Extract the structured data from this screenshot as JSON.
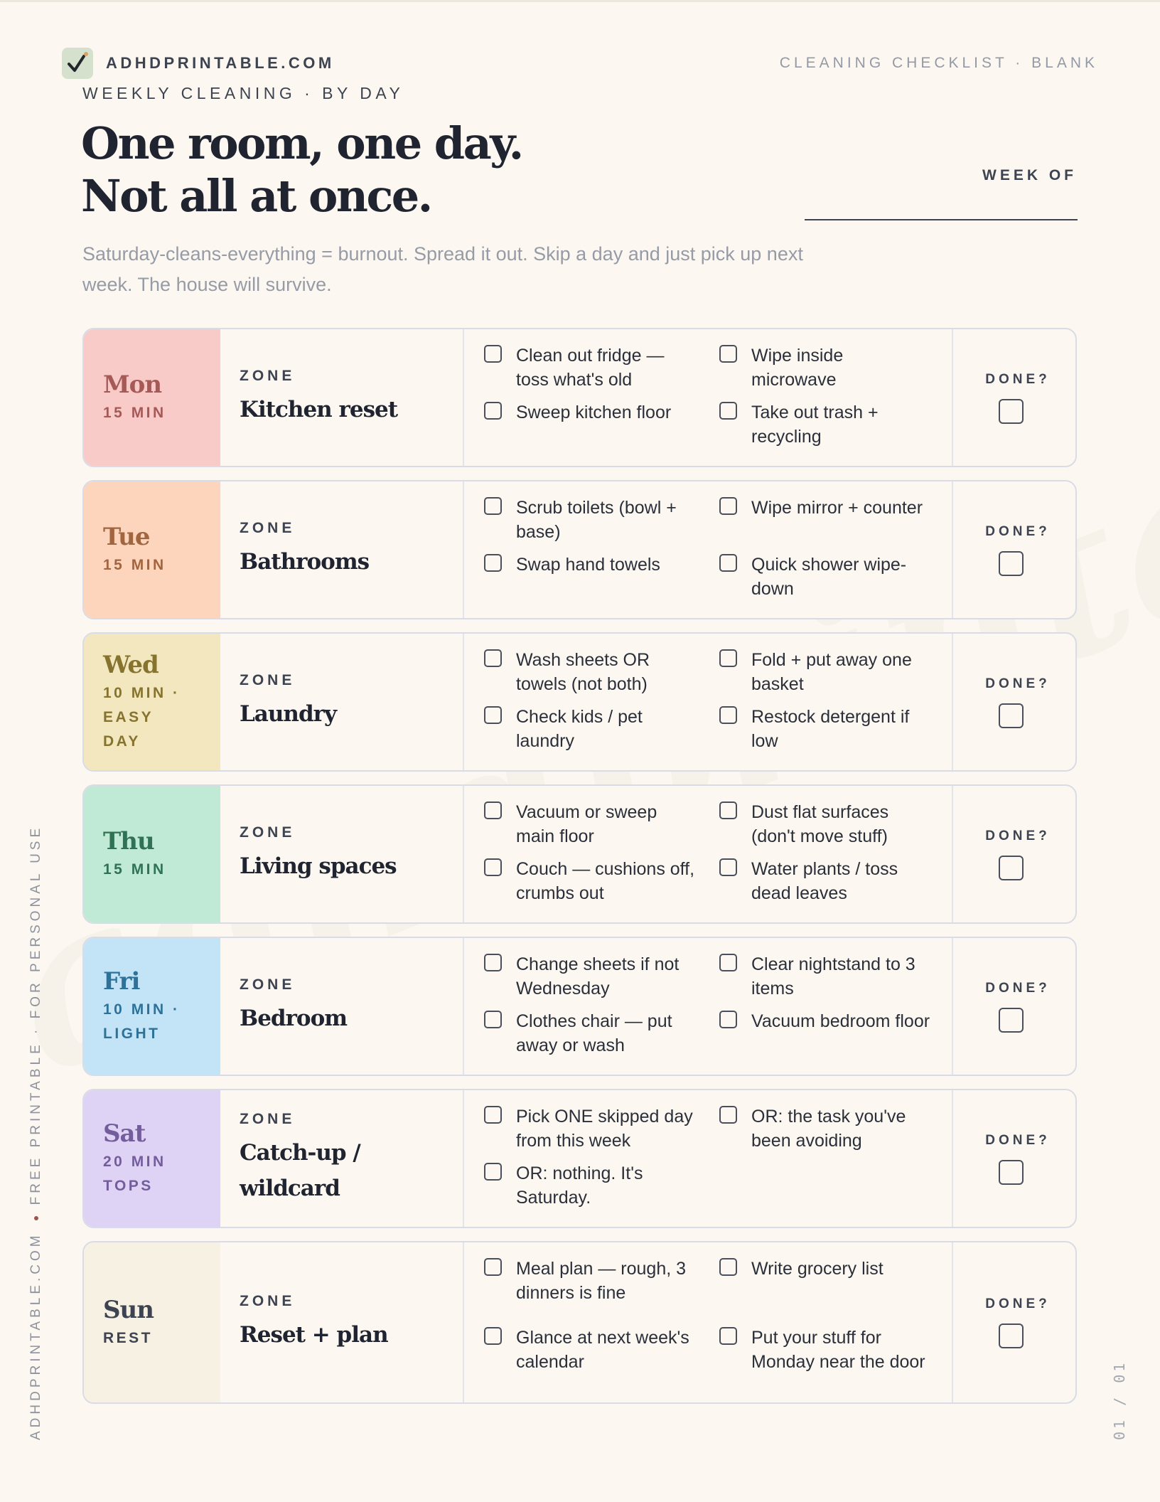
{
  "brand": {
    "name": "ADHDPRINTABLE.COM",
    "logo_icon": "checkmark-icon"
  },
  "header": {
    "kicker": "WEEKLY CLEANING · BY DAY",
    "kicker_right": "CLEANING CHECKLIST · BLANK",
    "headline_line1": "One room, one day.",
    "headline_line2": "Not all at once.",
    "subtitle": "Saturday-cleans-everything = burnout. Spread it out. Skip a day and just pick up next week. The house will survive.",
    "week_of_label": "WEEK OF",
    "week_of_value": ""
  },
  "zone_label": "ZONE",
  "done_label": "DONE?",
  "days": [
    {
      "day": "Mon",
      "meta": "15 MIN",
      "zone": "Kitchen reset",
      "bg": "#f9cbc8",
      "fg": "#a65a57",
      "tasks": [
        "Clean out fridge — toss what's old",
        "Wipe inside microwave",
        "Sweep kitchen floor",
        "Take out trash + recycling"
      ]
    },
    {
      "day": "Tue",
      "meta": "15 MIN",
      "zone": "Bathrooms",
      "bg": "#fdd5bd",
      "fg": "#a1653f",
      "tasks": [
        "Scrub toilets (bowl + base)",
        "Wipe mirror + counter",
        "Swap hand towels",
        "Quick shower wipe-down"
      ]
    },
    {
      "day": "Wed",
      "meta": "10 MIN · EASY DAY",
      "zone": "Laundry",
      "bg": "#f3e7c0",
      "fg": "#85732e",
      "tasks": [
        "Wash sheets OR towels (not both)",
        "Fold + put away one basket",
        "Check kids / pet laundry",
        "Restock detergent if low"
      ]
    },
    {
      "day": "Thu",
      "meta": "15 MIN",
      "zone": "Living spaces",
      "bg": "#c0e9d6",
      "fg": "#2f7354",
      "tasks": [
        "Vacuum or sweep main floor",
        "Dust flat surfaces (don't move stuff)",
        "Couch — cushions off, crumbs out",
        "Water plants / toss dead leaves"
      ]
    },
    {
      "day": "Fri",
      "meta": "10 MIN · LIGHT",
      "zone": "Bedroom",
      "bg": "#c2e4f6",
      "fg": "#2e7299",
      "tasks": [
        "Change sheets if not Wednesday",
        "Clear nightstand to 3 items",
        "Clothes chair — put away or wash",
        "Vacuum bedroom floor"
      ]
    },
    {
      "day": "Sat",
      "meta": "20 MIN TOPS",
      "zone": "Catch-up / wildcard",
      "bg": "#ded3f4",
      "fg": "#735d9c",
      "tasks": [
        "Pick ONE skipped day from this week",
        "OR: the task you've been avoiding",
        "OR: nothing. It's Saturday."
      ]
    },
    {
      "day": "Sun",
      "meta": "REST",
      "zone": "Reset + plan",
      "bg": "#f7f1e3",
      "fg": "#3d4350",
      "tasks": [
        "Meal plan — rough, 3 dinners is fine",
        "Write grocery list",
        "Glance at next week's calendar",
        "Put your stuff for Monday near the door"
      ]
    }
  ],
  "footer": {
    "side_left": "ADHDPRINTABLE.COM",
    "side_right": "FREE PRINTABLE · FOR PERSONAL USE",
    "page_number": "01 / 01"
  },
  "watermark": "adhdprintable.com"
}
